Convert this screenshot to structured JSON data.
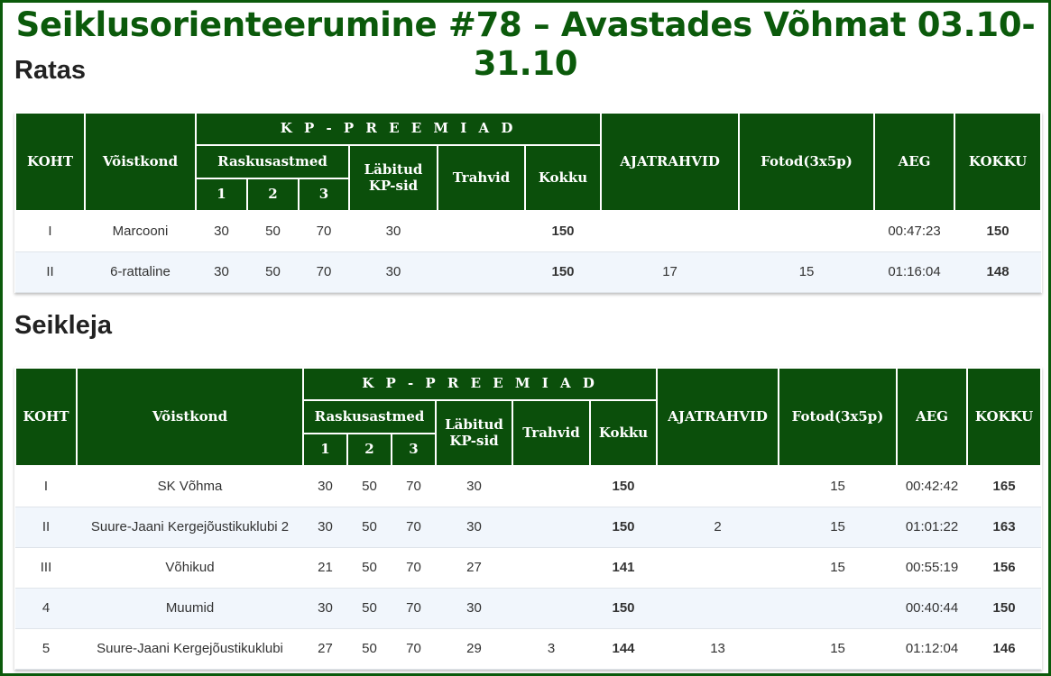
{
  "title": "Seiklusorienteerumine #78 – Avastades Võhmat 03.10-31.10",
  "headers": {
    "place": "KOHT",
    "team": "Võistkond",
    "kp_prizes": "K P - P R E E M I A D",
    "difficulty": "Raskusastmed",
    "level1": "1",
    "level2": "2",
    "level3": "3",
    "checkpoints_line1": "Läbitud",
    "checkpoints_line2": "KP-sid",
    "penalties": "Trahvid",
    "sum": "Kokku",
    "time_penalties": "AJATRAHVID",
    "photos": "Fotod(3x5p)",
    "time": "AEG",
    "total": "KOKKU"
  },
  "sections": [
    {
      "name": "Ratas",
      "rows": [
        {
          "place": "I",
          "team": "Marcooni",
          "l1": "30",
          "l2": "50",
          "l3": "70",
          "checkpoints": "30",
          "penalties": "",
          "sum": "150",
          "time_penalties": "",
          "photos": "",
          "time": "00:47:23",
          "total": "150"
        },
        {
          "place": "II",
          "team": "6-rattaline",
          "l1": "30",
          "l2": "50",
          "l3": "70",
          "checkpoints": "30",
          "penalties": "",
          "sum": "150",
          "time_penalties": "17",
          "photos": "15",
          "time": "01:16:04",
          "total": "148"
        }
      ]
    },
    {
      "name": "Seikleja",
      "rows": [
        {
          "place": "I",
          "team": "SK Võhma",
          "l1": "30",
          "l2": "50",
          "l3": "70",
          "checkpoints": "30",
          "penalties": "",
          "sum": "150",
          "time_penalties": "",
          "photos": "15",
          "time": "00:42:42",
          "total": "165"
        },
        {
          "place": "II",
          "team": "Suure-Jaani Kergejõustikuklubi 2",
          "l1": "30",
          "l2": "50",
          "l3": "70",
          "checkpoints": "30",
          "penalties": "",
          "sum": "150",
          "time_penalties": "2",
          "photos": "15",
          "time": "01:01:22",
          "total": "163"
        },
        {
          "place": "III",
          "team": "Võhikud",
          "l1": "21",
          "l2": "50",
          "l3": "70",
          "checkpoints": "27",
          "penalties": "",
          "sum": "141",
          "time_penalties": "",
          "photos": "15",
          "time": "00:55:19",
          "total": "156"
        },
        {
          "place": "4",
          "team": "Muumid",
          "l1": "30",
          "l2": "50",
          "l3": "70",
          "checkpoints": "30",
          "penalties": "",
          "sum": "150",
          "time_penalties": "",
          "photos": "",
          "time": "00:40:44",
          "total": "150"
        },
        {
          "place": "5",
          "team": "Suure-Jaani Kergejõustikuklubi",
          "l1": "27",
          "l2": "50",
          "l3": "70",
          "checkpoints": "29",
          "penalties": "3",
          "sum": "144",
          "time_penalties": "13",
          "photos": "15",
          "time": "01:12:04",
          "total": "146"
        }
      ]
    }
  ]
}
